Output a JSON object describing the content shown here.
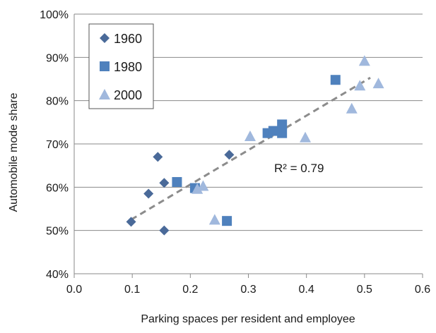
{
  "chart_data": {
    "type": "scatter",
    "title": "",
    "xlabel": "Parking spaces per resident and employee",
    "ylabel": "Automobile mode share",
    "xlim": [
      0,
      0.6
    ],
    "ylim": [
      0.4,
      1.0
    ],
    "x_ticks": [
      "0.0",
      "0.1",
      "0.2",
      "0.3",
      "0.4",
      "0.5",
      "0.6"
    ],
    "y_ticks": [
      "40%",
      "50%",
      "60%",
      "70%",
      "80%",
      "90%",
      "100%"
    ],
    "grid": "horizontal",
    "legend_position": "top-left",
    "series": [
      {
        "name": "1960",
        "marker": "diamond",
        "color": "#4a6a99",
        "points": [
          {
            "x": 0.098,
            "y": 0.52
          },
          {
            "x": 0.128,
            "y": 0.585
          },
          {
            "x": 0.144,
            "y": 0.67
          },
          {
            "x": 0.155,
            "y": 0.61
          },
          {
            "x": 0.155,
            "y": 0.5
          },
          {
            "x": 0.267,
            "y": 0.675
          }
        ]
      },
      {
        "name": "1980",
        "marker": "square",
        "color": "#4f81bd",
        "points": [
          {
            "x": 0.177,
            "y": 0.612
          },
          {
            "x": 0.208,
            "y": 0.598
          },
          {
            "x": 0.263,
            "y": 0.522
          },
          {
            "x": 0.333,
            "y": 0.725
          },
          {
            "x": 0.343,
            "y": 0.73
          },
          {
            "x": 0.358,
            "y": 0.745
          },
          {
            "x": 0.358,
            "y": 0.725
          },
          {
            "x": 0.45,
            "y": 0.848
          }
        ]
      },
      {
        "name": "2000",
        "marker": "triangle",
        "color": "#a0b8dd",
        "points": [
          {
            "x": 0.212,
            "y": 0.596
          },
          {
            "x": 0.222,
            "y": 0.603
          },
          {
            "x": 0.242,
            "y": 0.525
          },
          {
            "x": 0.303,
            "y": 0.718
          },
          {
            "x": 0.398,
            "y": 0.715
          },
          {
            "x": 0.478,
            "y": 0.782
          },
          {
            "x": 0.492,
            "y": 0.835
          },
          {
            "x": 0.5,
            "y": 0.892
          },
          {
            "x": 0.524,
            "y": 0.84
          }
        ]
      }
    ],
    "trendline": {
      "style": "dashed",
      "color": "#8c8c8c",
      "from": {
        "x": 0.098,
        "y": 0.525
      },
      "to": {
        "x": 0.51,
        "y": 0.853
      }
    },
    "annotation": "R² = 0.79"
  }
}
